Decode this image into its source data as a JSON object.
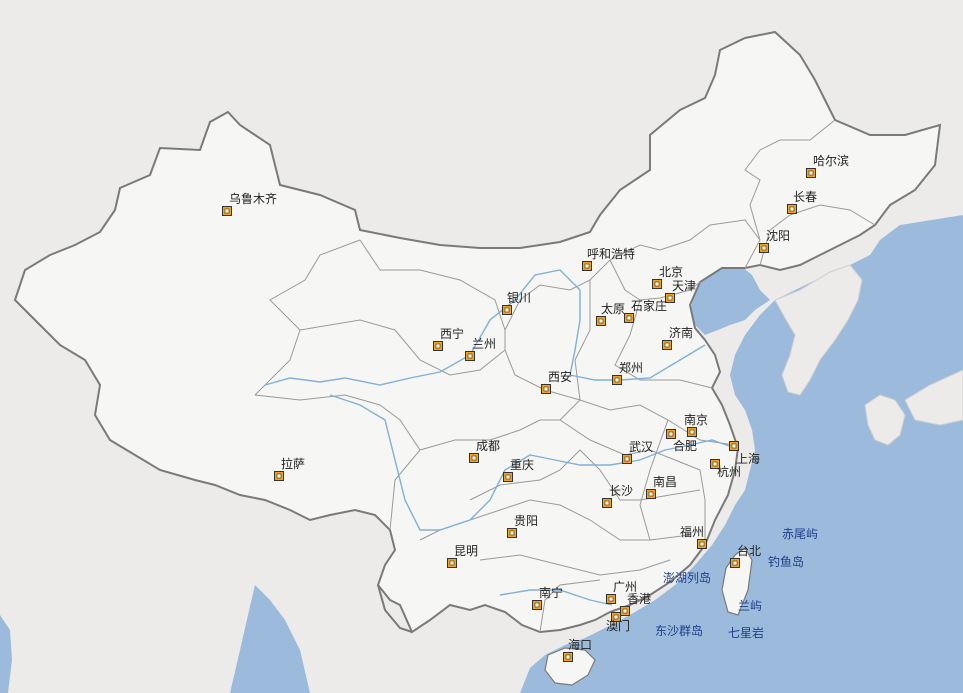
{
  "map": {
    "colors": {
      "land": "#f6f6f4",
      "background_land": "#ecebe9",
      "sea": "#9cbbdc",
      "river": "#7fb0da",
      "border": "#7a7a7a",
      "province_line": "#9a9a9a",
      "marker": "#f3a21a",
      "island_text": "#1e3f8a"
    },
    "cities": [
      {
        "name": "乌鲁木齐",
        "id": "urumqi"
      },
      {
        "name": "哈尔滨",
        "id": "harbin"
      },
      {
        "name": "长春",
        "id": "changchun"
      },
      {
        "name": "沈阳",
        "id": "shenyang"
      },
      {
        "name": "呼和浩特",
        "id": "hohhot"
      },
      {
        "name": "北京",
        "id": "beijing"
      },
      {
        "name": "天津",
        "id": "tianjin"
      },
      {
        "name": "银川",
        "id": "yinchuan"
      },
      {
        "name": "太原",
        "id": "taiyuan"
      },
      {
        "name": "石家庄",
        "id": "shijiazhuang"
      },
      {
        "name": "西宁",
        "id": "xining"
      },
      {
        "name": "兰州",
        "id": "lanzhou"
      },
      {
        "name": "济南",
        "id": "jinan"
      },
      {
        "name": "西安",
        "id": "xian"
      },
      {
        "name": "郑州",
        "id": "zhengzhou"
      },
      {
        "name": "南京",
        "id": "nanjing"
      },
      {
        "name": "合肥",
        "id": "hefei"
      },
      {
        "name": "上海",
        "id": "shanghai"
      },
      {
        "name": "成都",
        "id": "chengdu"
      },
      {
        "name": "武汉",
        "id": "wuhan"
      },
      {
        "name": "杭州",
        "id": "hangzhou"
      },
      {
        "name": "拉萨",
        "id": "lhasa"
      },
      {
        "name": "重庆",
        "id": "chongqing"
      },
      {
        "name": "南昌",
        "id": "nanchang"
      },
      {
        "name": "长沙",
        "id": "changsha"
      },
      {
        "name": "贵阳",
        "id": "guiyang"
      },
      {
        "name": "福州",
        "id": "fuzhou"
      },
      {
        "name": "昆明",
        "id": "kunming"
      },
      {
        "name": "台北",
        "id": "taipei"
      },
      {
        "name": "广州",
        "id": "guangzhou"
      },
      {
        "name": "南宁",
        "id": "nanning"
      },
      {
        "name": "香港",
        "id": "hongkong"
      },
      {
        "name": "澳门",
        "id": "macau"
      },
      {
        "name": "海口",
        "id": "haikou"
      }
    ],
    "islands": [
      {
        "name": "赤尾屿",
        "id": "chiweiyu"
      },
      {
        "name": "钓鱼岛",
        "id": "diaoyudao"
      },
      {
        "name": "澎湖列岛",
        "id": "penghu"
      },
      {
        "name": "兰屿",
        "id": "lanyu"
      },
      {
        "name": "东沙群岛",
        "id": "dongsha"
      },
      {
        "name": "七星岩",
        "id": "qixingyan"
      }
    ]
  }
}
